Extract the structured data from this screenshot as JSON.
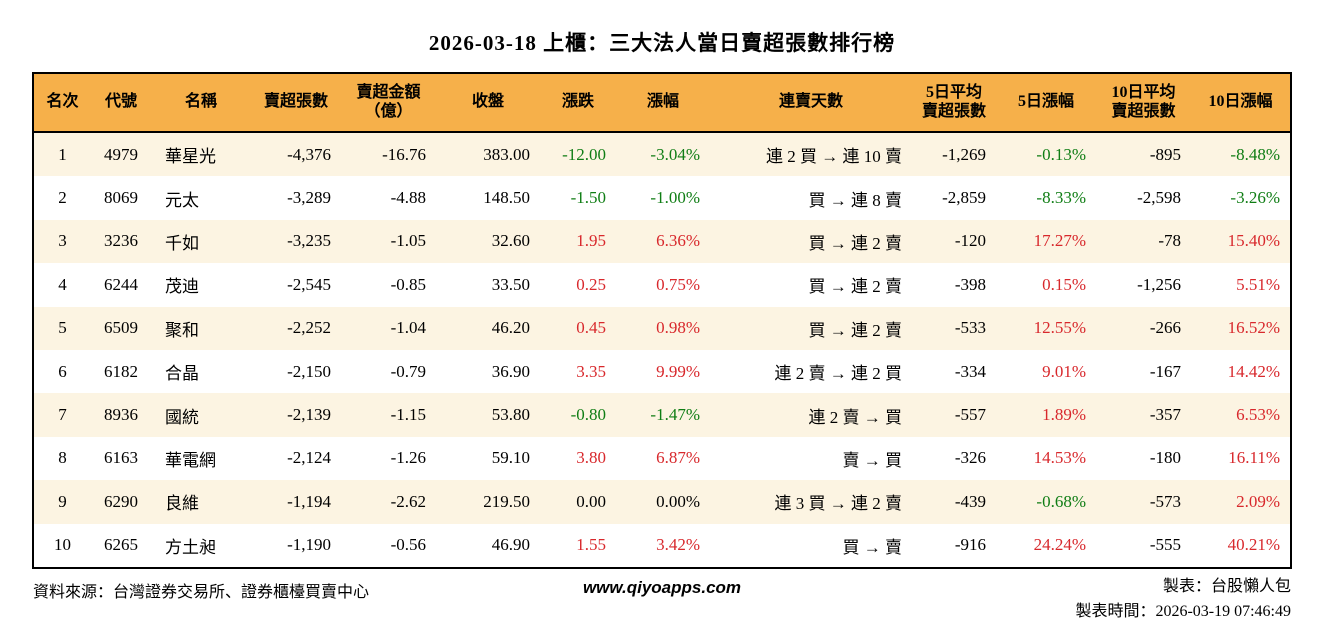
{
  "title": "2026-03-18 上櫃：三大法人當日賣超張數排行榜",
  "colors": {
    "red": "#d8282c",
    "green": "#0f7d14",
    "black": "#000000",
    "header_bg": "#f6b04a",
    "row_alt_bg": "#fcf4e2",
    "border": "#000000"
  },
  "chart_data": {
    "type": "table",
    "title": "2026-03-18 上櫃：三大法人當日賣超張數排行榜",
    "columns": [
      {
        "key": "rank",
        "label": "名次",
        "align": "center"
      },
      {
        "key": "code",
        "label": "代號",
        "align": "center"
      },
      {
        "key": "name",
        "label": "名稱",
        "align": "left"
      },
      {
        "key": "net_sell_volume",
        "label": "賣超張數",
        "align": "right"
      },
      {
        "key": "net_sell_amount",
        "label": "賣超金額（億）",
        "label_lines": [
          "賣超金額",
          "（億）"
        ],
        "align": "right"
      },
      {
        "key": "close",
        "label": "收盤",
        "align": "right"
      },
      {
        "key": "change",
        "label": "漲跌",
        "align": "right",
        "color_key": "change_color"
      },
      {
        "key": "change_pct",
        "label": "漲幅",
        "align": "right",
        "color_key": "change_color"
      },
      {
        "key": "streak",
        "label": "連賣天數",
        "align": "right"
      },
      {
        "key": "avg5_volume",
        "label": "5日平均賣超張數",
        "label_lines": [
          "5日平均",
          "賣超張數"
        ],
        "align": "right"
      },
      {
        "key": "chg5_pct",
        "label": "5日漲幅",
        "align": "right",
        "color_key": "chg5_color"
      },
      {
        "key": "avg10_volume",
        "label": "10日平均賣超張數",
        "label_lines": [
          "10日平均",
          "賣超張數"
        ],
        "align": "right"
      },
      {
        "key": "chg10_pct",
        "label": "10日漲幅",
        "align": "right",
        "color_key": "chg10_color"
      }
    ],
    "rows": [
      {
        "rank": "1",
        "code": "4979",
        "name": "華星光",
        "net_sell_volume": "-4,376",
        "net_sell_amount": "-16.76",
        "close": "383.00",
        "change": "-12.00",
        "change_pct": "-3.04%",
        "change_color": "green",
        "streak": "連 2 買 → 連 10 賣",
        "avg5_volume": "-1,269",
        "chg5_pct": "-0.13%",
        "chg5_color": "green",
        "avg10_volume": "-895",
        "chg10_pct": "-8.48%",
        "chg10_color": "green"
      },
      {
        "rank": "2",
        "code": "8069",
        "name": "元太",
        "net_sell_volume": "-3,289",
        "net_sell_amount": "-4.88",
        "close": "148.50",
        "change": "-1.50",
        "change_pct": "-1.00%",
        "change_color": "green",
        "streak": "買 → 連 8 賣",
        "avg5_volume": "-2,859",
        "chg5_pct": "-8.33%",
        "chg5_color": "green",
        "avg10_volume": "-2,598",
        "chg10_pct": "-3.26%",
        "chg10_color": "green"
      },
      {
        "rank": "3",
        "code": "3236",
        "name": "千如",
        "net_sell_volume": "-3,235",
        "net_sell_amount": "-1.05",
        "close": "32.60",
        "change": "1.95",
        "change_pct": "6.36%",
        "change_color": "red",
        "streak": "買 → 連 2 賣",
        "avg5_volume": "-120",
        "chg5_pct": "17.27%",
        "chg5_color": "red",
        "avg10_volume": "-78",
        "chg10_pct": "15.40%",
        "chg10_color": "red"
      },
      {
        "rank": "4",
        "code": "6244",
        "name": "茂迪",
        "net_sell_volume": "-2,545",
        "net_sell_amount": "-0.85",
        "close": "33.50",
        "change": "0.25",
        "change_pct": "0.75%",
        "change_color": "red",
        "streak": "買 → 連 2 賣",
        "avg5_volume": "-398",
        "chg5_pct": "0.15%",
        "chg5_color": "red",
        "avg10_volume": "-1,256",
        "chg10_pct": "5.51%",
        "chg10_color": "red"
      },
      {
        "rank": "5",
        "code": "6509",
        "name": "聚和",
        "net_sell_volume": "-2,252",
        "net_sell_amount": "-1.04",
        "close": "46.20",
        "change": "0.45",
        "change_pct": "0.98%",
        "change_color": "red",
        "streak": "買 → 連 2 賣",
        "avg5_volume": "-533",
        "chg5_pct": "12.55%",
        "chg5_color": "red",
        "avg10_volume": "-266",
        "chg10_pct": "16.52%",
        "chg10_color": "red"
      },
      {
        "rank": "6",
        "code": "6182",
        "name": "合晶",
        "net_sell_volume": "-2,150",
        "net_sell_amount": "-0.79",
        "close": "36.90",
        "change": "3.35",
        "change_pct": "9.99%",
        "change_color": "red",
        "streak": "連 2 賣 → 連 2 買",
        "avg5_volume": "-334",
        "chg5_pct": "9.01%",
        "chg5_color": "red",
        "avg10_volume": "-167",
        "chg10_pct": "14.42%",
        "chg10_color": "red"
      },
      {
        "rank": "7",
        "code": "8936",
        "name": "國統",
        "net_sell_volume": "-2,139",
        "net_sell_amount": "-1.15",
        "close": "53.80",
        "change": "-0.80",
        "change_pct": "-1.47%",
        "change_color": "green",
        "streak": "連 2 賣 → 買",
        "avg5_volume": "-557",
        "chg5_pct": "1.89%",
        "chg5_color": "red",
        "avg10_volume": "-357",
        "chg10_pct": "6.53%",
        "chg10_color": "red"
      },
      {
        "rank": "8",
        "code": "6163",
        "name": "華電網",
        "net_sell_volume": "-2,124",
        "net_sell_amount": "-1.26",
        "close": "59.10",
        "change": "3.80",
        "change_pct": "6.87%",
        "change_color": "red",
        "streak": "賣 → 買",
        "avg5_volume": "-326",
        "chg5_pct": "14.53%",
        "chg5_color": "red",
        "avg10_volume": "-180",
        "chg10_pct": "16.11%",
        "chg10_color": "red"
      },
      {
        "rank": "9",
        "code": "6290",
        "name": "良維",
        "net_sell_volume": "-1,194",
        "net_sell_amount": "-2.62",
        "close": "219.50",
        "change": "0.00",
        "change_pct": "0.00%",
        "change_color": "black",
        "streak": "連 3 買 → 連 2 賣",
        "avg5_volume": "-439",
        "chg5_pct": "-0.68%",
        "chg5_color": "green",
        "avg10_volume": "-573",
        "chg10_pct": "2.09%",
        "chg10_color": "red"
      },
      {
        "rank": "10",
        "code": "6265",
        "name": "方土昶",
        "net_sell_volume": "-1,190",
        "net_sell_amount": "-0.56",
        "close": "46.90",
        "change": "1.55",
        "change_pct": "3.42%",
        "change_color": "red",
        "streak": "買 → 賣",
        "avg5_volume": "-916",
        "chg5_pct": "24.24%",
        "chg5_color": "red",
        "avg10_volume": "-555",
        "chg10_pct": "40.21%",
        "chg10_color": "red"
      }
    ]
  },
  "footer": {
    "source": "資料來源：台灣證券交易所、證券櫃檯買賣中心",
    "website": "www.qiyoapps.com",
    "made_by": "製表：台股懶人包",
    "made_time": "製表時間：2026-03-19 07:46:49"
  }
}
